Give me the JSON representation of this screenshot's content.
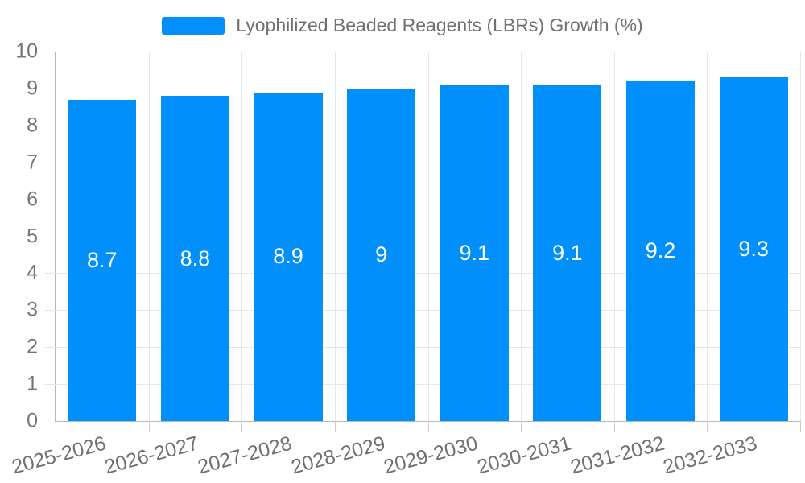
{
  "legend": {
    "label": "Lyophilized Beaded Reagents (LBRs) Growth (%)"
  },
  "chart_data": {
    "type": "bar",
    "title": "",
    "xlabel": "",
    "ylabel": "",
    "series_name": "Lyophilized Beaded Reagents (LBRs) Growth (%)",
    "categories": [
      "2025-2026",
      "2026-2027",
      "2027-2028",
      "2028-2029",
      "2029-2030",
      "2030-2031",
      "2031-2032",
      "2032-2033"
    ],
    "values": [
      8.7,
      8.8,
      8.9,
      9,
      9.1,
      9.1,
      9.2,
      9.3
    ],
    "bar_labels": [
      "8.7",
      "8.8",
      "8.9",
      "9",
      "9.1",
      "9.1",
      "9.2",
      "9.3"
    ],
    "ylim": [
      0,
      10
    ],
    "y_ticks": [
      0,
      1,
      2,
      3,
      4,
      5,
      6,
      7,
      8,
      9,
      10
    ],
    "grid": true,
    "legend_position": "top-center",
    "x_label_rotation": -15,
    "colors": {
      "bar": "#008FFB",
      "bar_label": "#ffffff",
      "axis_text": "#757575",
      "x_axis_text": "#707070",
      "legend_text": "#707070",
      "gridline": "#e7e7e7",
      "axis_line": "#b6b6b6"
    }
  }
}
